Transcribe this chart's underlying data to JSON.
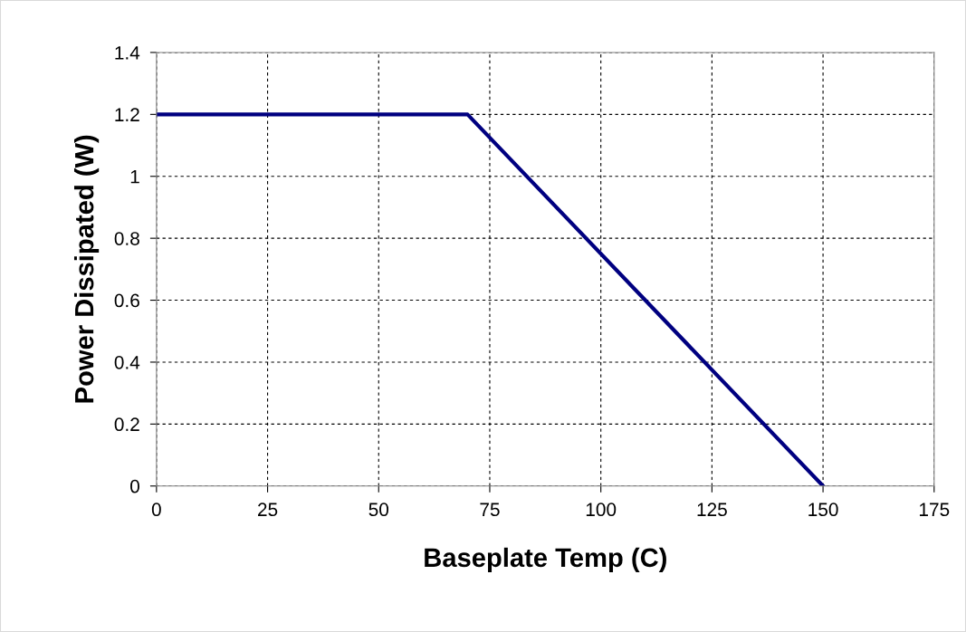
{
  "chart_data": {
    "type": "line",
    "xlabel": "Baseplate Temp (C)",
    "ylabel": "Power Dissipated (W)",
    "x": [
      0,
      70,
      150
    ],
    "series": [
      {
        "color": "#000080",
        "values": [
          1.2,
          1.2,
          0
        ]
      }
    ],
    "xlim": [
      0,
      175
    ],
    "xticks": [
      0,
      25,
      50,
      75,
      100,
      125,
      150,
      175
    ],
    "ylim": [
      0,
      1.4
    ],
    "yticks": [
      0,
      0.2,
      0.4,
      0.6,
      0.8,
      1,
      1.2,
      1.4
    ],
    "grid": true,
    "marker": "none",
    "line_style": "solid",
    "legend": false
  }
}
